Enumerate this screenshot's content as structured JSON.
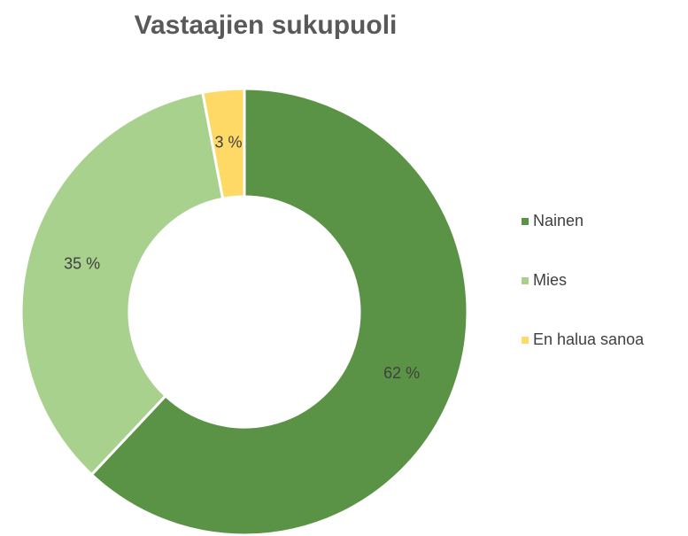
{
  "chart_data": {
    "type": "donut",
    "title": "Vastaajien sukupuoli",
    "categories": [
      "Nainen",
      "Mies",
      "En halua sanoa"
    ],
    "values": [
      62,
      35,
      3
    ],
    "value_labels": [
      "62 %",
      "35 %",
      "3 %"
    ],
    "colors": [
      "#5b9346",
      "#a9d18e",
      "#ffd966"
    ],
    "legend": "right"
  }
}
